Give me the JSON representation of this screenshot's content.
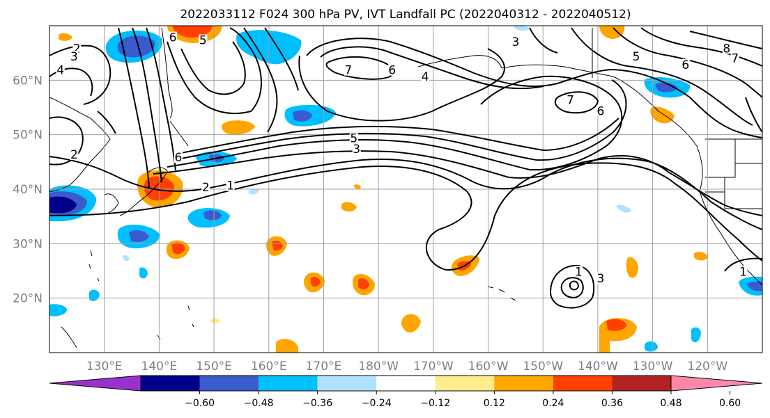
{
  "title": "2022033112 F024 300 hPa PV, IVT Landfall PC (2022040312 - 2022040512)",
  "map": {
    "lon_min": 120,
    "lon_max": 250,
    "lat_min": 10,
    "lat_max": 70,
    "lat_ticks": [
      {
        "lat": 60,
        "label": "60°N"
      },
      {
        "lat": 50,
        "label": "50°N"
      },
      {
        "lat": 40,
        "label": "40°N"
      },
      {
        "lat": 30,
        "label": "30°N"
      },
      {
        "lat": 20,
        "label": "20°N"
      }
    ],
    "lon_ticks": [
      {
        "lon": 130,
        "label": "130°E"
      },
      {
        "lon": 140,
        "label": "140°E"
      },
      {
        "lon": 150,
        "label": "150°E"
      },
      {
        "lon": 160,
        "label": "160°E"
      },
      {
        "lon": 170,
        "label": "170°E"
      },
      {
        "lon": 180,
        "label": "180°W"
      },
      {
        "lon": 190,
        "label": "170°W"
      },
      {
        "lon": 200,
        "label": "160°W"
      },
      {
        "lon": 210,
        "label": "150°W"
      },
      {
        "lon": 220,
        "label": "140°W"
      },
      {
        "lon": 230,
        "label": "130°W"
      },
      {
        "lon": 240,
        "label": "120°W"
      }
    ],
    "contour_labels": [
      {
        "text": "2",
        "lon": 125,
        "lat": 65.5
      },
      {
        "text": "3",
        "lon": 124.5,
        "lat": 64
      },
      {
        "text": "4",
        "lon": 122,
        "lat": 61.5
      },
      {
        "text": "6",
        "lon": 142.5,
        "lat": 67.5
      },
      {
        "text": "5",
        "lon": 148,
        "lat": 67
      },
      {
        "text": "7",
        "lon": 174.5,
        "lat": 61.5
      },
      {
        "text": "6",
        "lon": 182.5,
        "lat": 61.5
      },
      {
        "text": "4",
        "lon": 188.5,
        "lat": 60.3
      },
      {
        "text": "3",
        "lon": 205,
        "lat": 66.7
      },
      {
        "text": "7",
        "lon": 215,
        "lat": 56
      },
      {
        "text": "6",
        "lon": 220.5,
        "lat": 54
      },
      {
        "text": "5",
        "lon": 227,
        "lat": 64
      },
      {
        "text": "6",
        "lon": 236,
        "lat": 62.5
      },
      {
        "text": "8",
        "lon": 243.5,
        "lat": 65.5
      },
      {
        "text": "7",
        "lon": 245,
        "lat": 63.7
      },
      {
        "text": "6",
        "lon": 143.5,
        "lat": 45.5
      },
      {
        "text": "5",
        "lon": 175.5,
        "lat": 49
      },
      {
        "text": "3",
        "lon": 176,
        "lat": 47
      },
      {
        "text": "2",
        "lon": 148.5,
        "lat": 40
      },
      {
        "text": "1",
        "lon": 153,
        "lat": 40.3
      },
      {
        "text": "2",
        "lon": 124.5,
        "lat": 46
      },
      {
        "text": "1",
        "lon": 216.5,
        "lat": 24.5
      },
      {
        "text": "3",
        "lon": 220.5,
        "lat": 23.3
      },
      {
        "text": "1",
        "lon": 246.5,
        "lat": 24.5
      }
    ]
  },
  "colorbar": {
    "colors": [
      "#9932cc",
      "#00008b",
      "#3a5bcd",
      "#00bfff",
      "#b0e2ff",
      "#ffffff",
      "#ffec8b",
      "#ffa500",
      "#ff4000",
      "#b22222",
      "#ff88aa"
    ],
    "tick_labels": [
      "−0.60",
      "−0.48",
      "−0.36",
      "−0.24",
      "−0.12",
      "0.12",
      "0.24",
      "0.36",
      "0.48",
      "0.60"
    ]
  },
  "colors": {
    "grid": "#a0a0a0",
    "contour": "#000000",
    "negative_fill_light": "#b0e2ff",
    "negative_fill": "#00bfff",
    "negative_fill_strong": "#3a5bcd",
    "positive_fill_light": "#ffec8b",
    "positive_fill": "#ffa500",
    "positive_fill_strong": "#ff4000"
  }
}
